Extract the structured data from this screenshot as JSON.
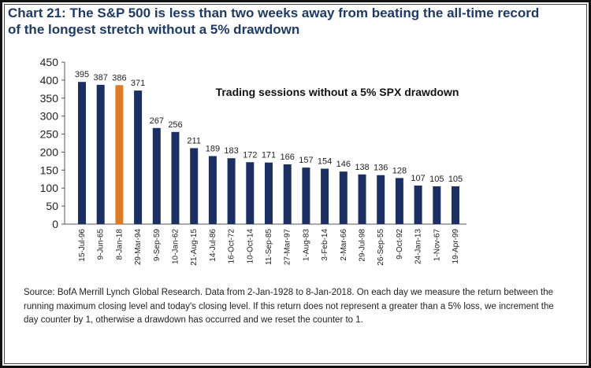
{
  "chart_data": {
    "type": "bar",
    "title": "Chart 21: The S&P 500 is less than two weeks away from beating the all-time record of the longest stretch without a 5% drawdown",
    "annotation": "Trading sessions without a 5% SPX drawdown",
    "xlabel": "",
    "ylabel": "",
    "ylim": [
      0,
      450
    ],
    "yticks": [
      0,
      50,
      100,
      150,
      200,
      250,
      300,
      350,
      400,
      450
    ],
    "categories": [
      "15-Jul-96",
      "9-Jun-65",
      "8-Jan-18",
      "29-Mar-94",
      "9-Sep-59",
      "10-Jan-62",
      "21-Aug-15",
      "14-Jul-86",
      "16-Oct-72",
      "10-Oct-14",
      "11-Sep-85",
      "27-Mar-97",
      "1-Aug-83",
      "3-Feb-14",
      "2-Mar-66",
      "29-Jul-98",
      "26-Sep-55",
      "9-Oct-92",
      "24-Jan-13",
      "1-Nov-67",
      "19-Apr-99"
    ],
    "values": [
      395,
      387,
      386,
      371,
      267,
      256,
      211,
      189,
      183,
      172,
      171,
      166,
      157,
      154,
      146,
      138,
      136,
      128,
      107,
      105,
      105
    ],
    "highlight_index": 2,
    "colors": {
      "bar": "#1b2f63",
      "highlight": "#e07b24",
      "title": "#1f3a66",
      "text": "#222222"
    },
    "grid": false,
    "legend": "none"
  },
  "source_note": "Source: BofA Merrill Lynch Global Research. Data from 2-Jan-1928 to 8-Jan-2018. On each day we measure the return between the running maximum closing level and today's closing level. If this return does not represent a greater than a 5% loss, we increment the day counter by 1, otherwise a drawdown has occurred and we reset the counter to 1."
}
